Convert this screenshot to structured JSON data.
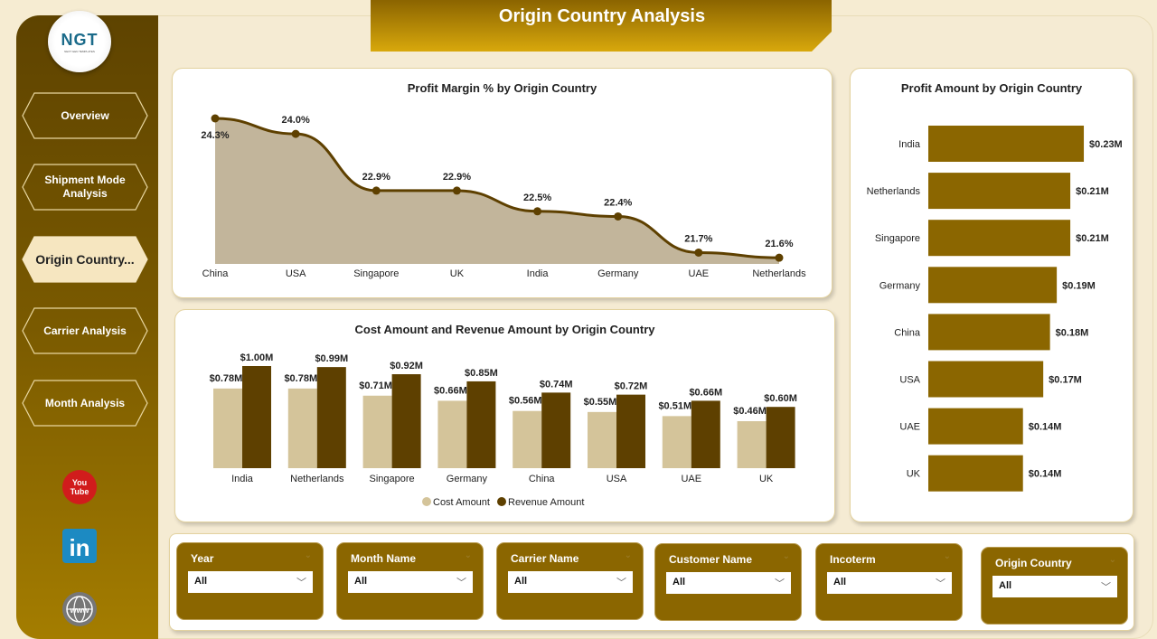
{
  "page_title": "Origin Country  Analysis",
  "logo": {
    "text": "NGT",
    "subtitle": "NEXT GEN TEMPLATES"
  },
  "nav": [
    {
      "label": "Overview"
    },
    {
      "label": "Shipment Mode Analysis"
    },
    {
      "label": "Origin Country...",
      "active": true
    },
    {
      "label": "Carrier Analysis"
    },
    {
      "label": "Month Analysis"
    }
  ],
  "social": [
    {
      "icon": "youtube-icon",
      "text": "You Tube"
    },
    {
      "icon": "linkedin-icon",
      "text": "in"
    },
    {
      "icon": "globe-icon",
      "text": "www"
    }
  ],
  "colors": {
    "sidebar": "#6b4d00",
    "accent": "#8b6600",
    "dark": "#5e4000",
    "cost": "#d4c49a",
    "area": "#c2b59b",
    "banner": "#c99a08"
  },
  "profit_margin": {
    "title": "Profit Margin % by Origin Country",
    "chart_data": {
      "type": "area",
      "categories": [
        "China",
        "USA",
        "Singapore",
        "UK",
        "India",
        "Germany",
        "UAE",
        "Netherlands"
      ],
      "values": [
        24.3,
        24.0,
        22.9,
        22.9,
        22.5,
        22.4,
        21.7,
        21.6
      ],
      "labels": [
        "24.3%",
        "24.0%",
        "22.9%",
        "22.9%",
        "22.5%",
        "22.4%",
        "21.7%",
        "21.6%"
      ]
    }
  },
  "cost_revenue": {
    "title": "Cost Amount and Revenue Amount by Origin Country",
    "chart_data": {
      "type": "bar",
      "categories": [
        "India",
        "Netherlands",
        "Singapore",
        "Germany",
        "China",
        "USA",
        "UAE",
        "UK"
      ],
      "series": [
        {
          "name": "Cost Amount",
          "values": [
            0.78,
            0.78,
            0.71,
            0.66,
            0.56,
            0.55,
            0.51,
            0.46
          ],
          "labels": [
            "$0.78M",
            "$0.78M",
            "$0.71M",
            "$0.66M",
            "$0.56M",
            "$0.55M",
            "$0.51M",
            "$0.46M"
          ]
        },
        {
          "name": "Revenue Amount",
          "values": [
            1.0,
            0.99,
            0.92,
            0.85,
            0.74,
            0.72,
            0.66,
            0.6
          ],
          "labels": [
            "$1.00M",
            "$0.99M",
            "$0.92M",
            "$0.85M",
            "$0.74M",
            "$0.72M",
            "$0.66M",
            "$0.60M"
          ]
        }
      ],
      "legend": "bottom"
    }
  },
  "profit_amount": {
    "title": "Profit Amount by Origin Country",
    "chart_data": {
      "type": "bar",
      "orientation": "horizontal",
      "categories": [
        "India",
        "Netherlands",
        "Singapore",
        "Germany",
        "China",
        "USA",
        "UAE",
        "UK"
      ],
      "values": [
        0.23,
        0.21,
        0.21,
        0.19,
        0.18,
        0.17,
        0.14,
        0.14
      ],
      "labels": [
        "$0.23M",
        "$0.21M",
        "$0.21M",
        "$0.19M",
        "$0.18M",
        "$0.17M",
        "$0.14M",
        "$0.14M"
      ]
    }
  },
  "slicers": [
    {
      "label": "Year",
      "value": "All"
    },
    {
      "label": "Month Name",
      "value": "All"
    },
    {
      "label": "Carrier Name",
      "value": "All"
    },
    {
      "label": "Customer Name",
      "value": "All"
    },
    {
      "label": "Incoterm",
      "value": "All"
    },
    {
      "label": "Origin Country",
      "value": "All"
    }
  ]
}
